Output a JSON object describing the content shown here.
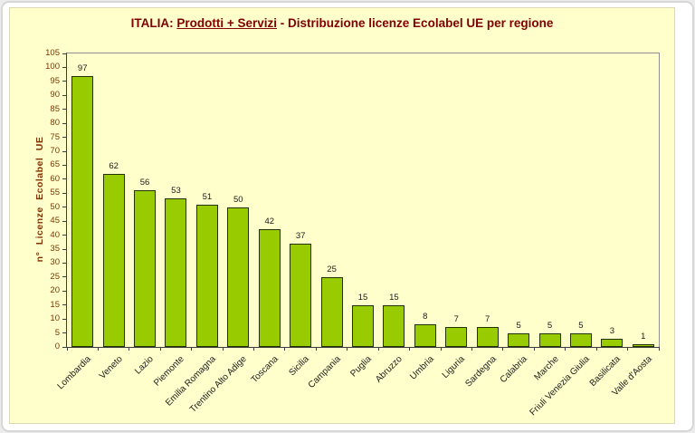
{
  "title": {
    "prefix": "ITALIA: ",
    "underlined": "Prodotti + Servizi",
    "suffix": " - Distribuzione licenze Ecolabel UE per regione"
  },
  "chart_data": {
    "type": "bar",
    "title": "ITALIA: Prodotti + Servizi - Distribuzione licenze Ecolabel UE per regione",
    "categories": [
      "Lombardia",
      "Veneto",
      "Lazio",
      "Piemonte",
      "Emilia Romagna",
      "Trentino Alto Adige",
      "Toscana",
      "Sicilia",
      "Campania",
      "Puglia",
      "Abruzzo",
      "Umbria",
      "Liguria",
      "Sardegna",
      "Calabria",
      "Marche",
      "Friuli Venezia Giulia",
      "Basilicata",
      "Valle d'Aosta"
    ],
    "values": [
      97,
      62,
      56,
      53,
      51,
      50,
      42,
      37,
      25,
      15,
      15,
      8,
      7,
      7,
      5,
      5,
      5,
      3,
      1
    ],
    "xlabel": "",
    "ylabel": "n° Licenze  Ecolabel  UE",
    "ylim": [
      0,
      105
    ],
    "ytick_step": 5,
    "grid": false,
    "legend": "none",
    "data_labels": true,
    "colors": {
      "background": "#FFFFCC",
      "bar_fill": "#99CC00",
      "bar_border": "#223300",
      "title_text": "#800000",
      "axis_text": "#803300",
      "label_text": "#1a1a1a",
      "plot_border": "#909090"
    }
  }
}
